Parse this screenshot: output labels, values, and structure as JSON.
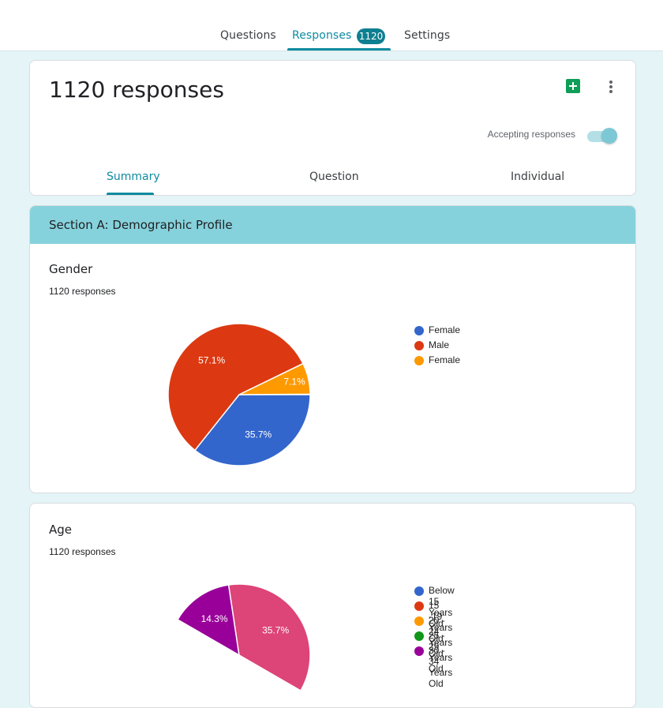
{
  "top_tabs": {
    "questions": "Questions",
    "responses": "Responses",
    "responses_badge": "1120",
    "settings": "Settings"
  },
  "header": {
    "title": "1120 responses",
    "accepting_label": "Accepting responses",
    "accepting_on": true
  },
  "sub_tabs": {
    "summary": "Summary",
    "question": "Question",
    "individual": "Individual"
  },
  "section": {
    "title": "Section A: Demographic Profile"
  },
  "questions": [
    {
      "title": "Gender",
      "count_text": "1120 responses"
    },
    {
      "title": "Age",
      "count_text": "1120 responses"
    }
  ],
  "chart_data": [
    {
      "type": "pie",
      "legend_position": "right",
      "slices": [
        {
          "label": "Female",
          "value": 35.7,
          "display": "35.7%",
          "color": "#3366cc"
        },
        {
          "label": "Male",
          "value": 57.1,
          "display": "57.1%",
          "color": "#dc3912"
        },
        {
          "label": "Female",
          "value": 7.1,
          "display": "7.1%",
          "color": "#ff9900"
        }
      ]
    },
    {
      "type": "pie",
      "legend_position": "right",
      "legend": [
        {
          "label": "Below 15 Years Old",
          "color": "#3366cc"
        },
        {
          "label": "15 -19 Years Old",
          "color": "#dc3912"
        },
        {
          "label": "20 - 24 Years Old",
          "color": "#ff9900"
        },
        {
          "label": "25 - 29 Years Old",
          "color": "#109618"
        },
        {
          "label": "30 - 34 Years Old",
          "color": "#990099"
        }
      ],
      "visible_slices": [
        {
          "label": "30 - 34 Years Old",
          "value": 14.3,
          "display": "14.3%",
          "color": "#990099"
        },
        {
          "label": "",
          "value": 35.7,
          "display": "35.7%",
          "color": "#dd4477"
        }
      ]
    }
  ]
}
